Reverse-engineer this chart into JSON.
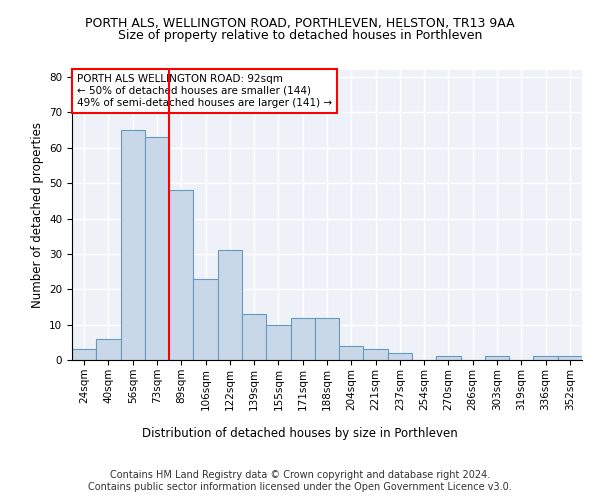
{
  "title": "PORTH ALS, WELLINGTON ROAD, PORTHLEVEN, HELSTON, TR13 9AA",
  "subtitle": "Size of property relative to detached houses in Porthleven",
  "xlabel": "Distribution of detached houses by size in Porthleven",
  "ylabel": "Number of detached properties",
  "bar_color": "#c8d8e8",
  "bar_edge_color": "#6699bb",
  "vline_color": "red",
  "vline_x": 4,
  "categories": [
    "24sqm",
    "40sqm",
    "56sqm",
    "73sqm",
    "89sqm",
    "106sqm",
    "122sqm",
    "139sqm",
    "155sqm",
    "171sqm",
    "188sqm",
    "204sqm",
    "221sqm",
    "237sqm",
    "254sqm",
    "270sqm",
    "286sqm",
    "303sqm",
    "319sqm",
    "336sqm",
    "352sqm"
  ],
  "values": [
    3,
    6,
    65,
    63,
    48,
    23,
    31,
    13,
    10,
    12,
    12,
    4,
    3,
    2,
    0,
    1,
    0,
    1,
    0,
    1,
    1
  ],
  "highlight_index": 4,
  "annotation_text": "PORTH ALS WELLINGTON ROAD: 92sqm\n← 50% of detached houses are smaller (144)\n49% of semi-detached houses are larger (141) →",
  "ylim": [
    0,
    82
  ],
  "yticks": [
    0,
    10,
    20,
    30,
    40,
    50,
    60,
    70,
    80
  ],
  "footer_line1": "Contains HM Land Registry data © Crown copyright and database right 2024.",
  "footer_line2": "Contains public sector information licensed under the Open Government Licence v3.0.",
  "background_color": "#eef2f8",
  "grid_color": "white",
  "title_fontsize": 9,
  "subtitle_fontsize": 9,
  "axis_label_fontsize": 8.5,
  "tick_fontsize": 7.5,
  "annotation_fontsize": 7.5,
  "footer_fontsize": 7
}
